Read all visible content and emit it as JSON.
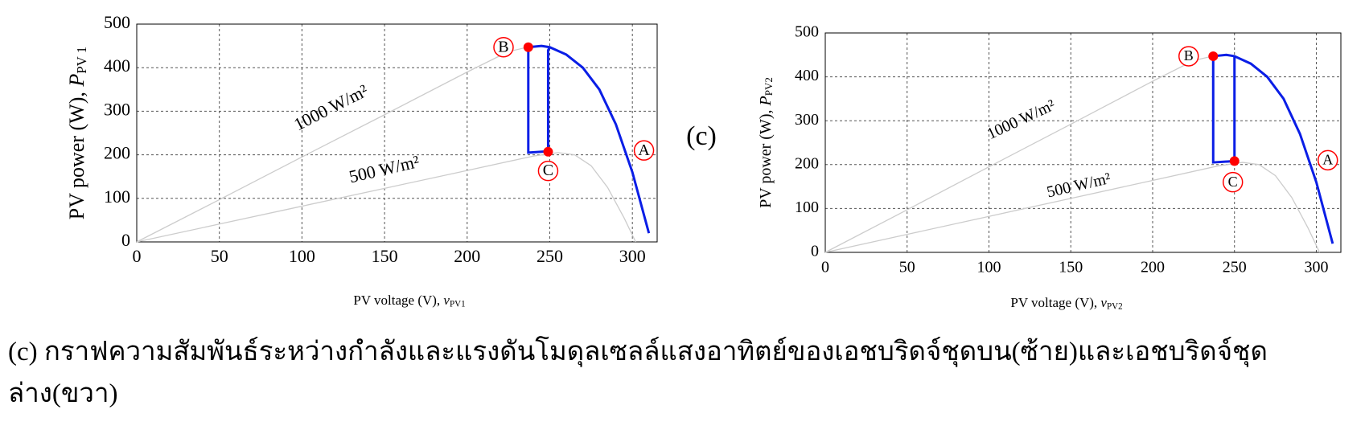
{
  "chart_data": [
    {
      "type": "line",
      "xlabel": {
        "text": "PV voltage (V), ",
        "var": "v",
        "sub": "PV1"
      },
      "ylabel": {
        "text": "PV power (W), ",
        "var": "P",
        "sub": "PV 1"
      },
      "xlim": [
        0,
        315
      ],
      "ylim": [
        0,
        500
      ],
      "xticks": [
        0,
        50,
        100,
        150,
        200,
        250,
        300
      ],
      "yticks": [
        0,
        100,
        200,
        300,
        400,
        500
      ],
      "grid": true,
      "series": [
        {
          "color": "#cccccc",
          "x": [
            0,
            50,
            100,
            150,
            200,
            225,
            240,
            250,
            260,
            270,
            280,
            290,
            300,
            310
          ],
          "values": [
            0,
            97,
            195,
            292,
            390,
            437,
            450,
            447,
            430,
            400,
            350,
            270,
            160,
            20
          ]
        },
        {
          "color": "#cccccc",
          "x": [
            0,
            50,
            100,
            150,
            200,
            240,
            255,
            265,
            275,
            285,
            295,
            302
          ],
          "values": [
            0,
            41,
            82,
            123,
            164,
            197,
            205,
            200,
            175,
            125,
            55,
            0
          ]
        },
        {
          "color": "#0a1ee6",
          "x": [
            237,
            245,
            250,
            260,
            270,
            280,
            290,
            300,
            310
          ],
          "values": [
            447,
            450,
            447,
            430,
            400,
            350,
            270,
            160,
            20
          ]
        },
        {
          "color": "#0a1ee6",
          "x": [
            237,
            237,
            249,
            249,
            250
          ],
          "values": [
            447,
            205,
            208,
            440,
            447
          ]
        }
      ],
      "markers": {
        "color": "#ff0000",
        "x": [
          237,
          249
        ],
        "values": [
          447,
          207
        ]
      },
      "annotations": [
        "1000 W/m²",
        "500 W/m²",
        "A",
        "B",
        "C"
      ]
    },
    {
      "type": "line",
      "xlabel": {
        "text": "PV voltage (V), ",
        "var": "v",
        "sub": "PV2"
      },
      "ylabel": {
        "text": "PV power (W), ",
        "var": "P",
        "sub": "PV2"
      },
      "xlim": [
        0,
        315
      ],
      "ylim": [
        0,
        500
      ],
      "xticks": [
        0,
        50,
        100,
        150,
        200,
        250,
        300
      ],
      "yticks": [
        0,
        100,
        200,
        300,
        400,
        500
      ],
      "grid": true,
      "series": [
        {
          "color": "#cccccc",
          "x": [
            0,
            50,
            100,
            150,
            200,
            225,
            240,
            250,
            260,
            270,
            280,
            290,
            300,
            310
          ],
          "values": [
            0,
            97,
            195,
            292,
            390,
            437,
            450,
            447,
            430,
            400,
            350,
            270,
            160,
            20
          ]
        },
        {
          "color": "#cccccc",
          "x": [
            0,
            50,
            100,
            150,
            200,
            240,
            255,
            265,
            275,
            285,
            295,
            302
          ],
          "values": [
            0,
            41,
            82,
            123,
            164,
            197,
            205,
            200,
            175,
            125,
            55,
            0
          ]
        },
        {
          "color": "#0a1ee6",
          "x": [
            237,
            245,
            250,
            260,
            270,
            280,
            290,
            300,
            310
          ],
          "values": [
            447,
            450,
            447,
            430,
            400,
            350,
            270,
            160,
            20
          ]
        },
        {
          "color": "#0a1ee6",
          "x": [
            237,
            237,
            250,
            250,
            250
          ],
          "values": [
            447,
            205,
            208,
            440,
            447
          ]
        }
      ],
      "markers": {
        "color": "#ff0000",
        "x": [
          237,
          250
        ],
        "values": [
          447,
          208
        ]
      },
      "annotations": [
        "1000 W/m²",
        "500 W/m²",
        "A",
        "B",
        "C"
      ]
    }
  ],
  "middle_label": "(c)",
  "caption": "(c) กราฟความสัมพันธ์ระหว่างกำลังและแรงดันโมดุลเซลล์แสงอาทิตย์ของเอชบริดจ์ชุดบน(ซ้าย)และเอชบริดจ์ชุดล่าง(ขวา)"
}
